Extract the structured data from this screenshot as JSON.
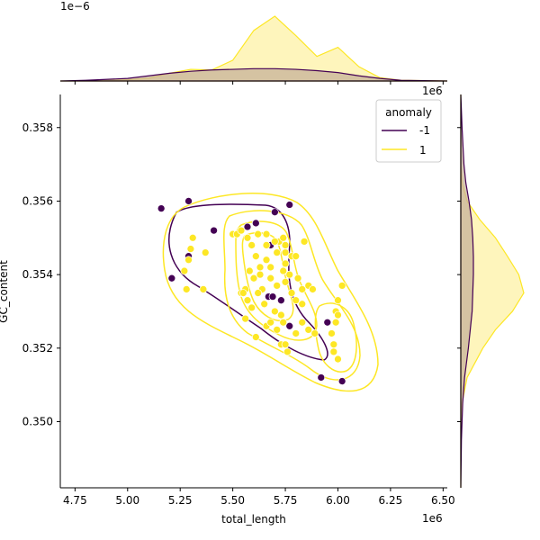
{
  "chart_data": {
    "type": "scatter",
    "subtype": "jointplot-scatter-kde",
    "xlabel": "total_length",
    "ylabel": "GC_content",
    "x_offset_label": "1e6",
    "y_offset_label": "",
    "top_marginal_offset_label": "1e−6",
    "right_marginal_offset_label": "1e6",
    "xlim": [
      4.68,
      6.52
    ],
    "ylim": [
      0.3482,
      0.3589
    ],
    "xticks": [
      "4.75",
      "5.00",
      "5.25",
      "5.50",
      "5.75",
      "6.00",
      "6.25",
      "6.50"
    ],
    "yticks": [
      "0.350",
      "0.352",
      "0.354",
      "0.356",
      "0.358"
    ],
    "grid": false,
    "legend": {
      "title": "anomaly",
      "placement": "upper right",
      "entries": [
        {
          "label": "-1",
          "color": "#440154"
        },
        {
          "label": "1",
          "color": "#fde725"
        }
      ]
    },
    "series": [
      {
        "name": "-1",
        "color": "#440154",
        "points": [
          [
            5.16,
            0.3558
          ],
          [
            5.21,
            0.3539
          ],
          [
            5.29,
            0.356
          ],
          [
            5.29,
            0.3545
          ],
          [
            5.41,
            0.3552
          ],
          [
            5.57,
            0.3553
          ],
          [
            5.61,
            0.3554
          ],
          [
            5.68,
            0.3548
          ],
          [
            5.7,
            0.3557
          ],
          [
            5.77,
            0.3559
          ],
          [
            5.67,
            0.3534
          ],
          [
            5.69,
            0.3534
          ],
          [
            5.73,
            0.3533
          ],
          [
            5.77,
            0.3526
          ],
          [
            5.95,
            0.3527
          ],
          [
            5.92,
            0.3512
          ],
          [
            6.02,
            0.3511
          ]
        ]
      },
      {
        "name": "1",
        "color": "#fde725",
        "points": [
          [
            5.27,
            0.3541
          ],
          [
            5.28,
            0.3536
          ],
          [
            5.29,
            0.3544
          ],
          [
            5.3,
            0.3547
          ],
          [
            5.31,
            0.355
          ],
          [
            5.36,
            0.3536
          ],
          [
            5.37,
            0.3546
          ],
          [
            5.5,
            0.3551
          ],
          [
            5.52,
            0.3551
          ],
          [
            5.54,
            0.3552
          ],
          [
            5.57,
            0.355
          ],
          [
            5.59,
            0.3548
          ],
          [
            5.62,
            0.3551
          ],
          [
            5.66,
            0.3551
          ],
          [
            5.61,
            0.3545
          ],
          [
            5.63,
            0.3542
          ],
          [
            5.66,
            0.3544
          ],
          [
            5.6,
            0.3539
          ],
          [
            5.64,
            0.3536
          ],
          [
            5.68,
            0.3539
          ],
          [
            5.71,
            0.3546
          ],
          [
            5.72,
            0.3549
          ],
          [
            5.75,
            0.3548
          ],
          [
            5.74,
            0.3541
          ],
          [
            5.75,
            0.3543
          ],
          [
            5.77,
            0.354
          ],
          [
            5.78,
            0.3545
          ],
          [
            5.8,
            0.3545
          ],
          [
            5.81,
            0.3539
          ],
          [
            5.83,
            0.3536
          ],
          [
            5.84,
            0.3549
          ],
          [
            5.86,
            0.3537
          ],
          [
            5.57,
            0.3533
          ],
          [
            5.59,
            0.3531
          ],
          [
            5.62,
            0.3535
          ],
          [
            5.65,
            0.3532
          ],
          [
            5.7,
            0.353
          ],
          [
            5.73,
            0.3529
          ],
          [
            5.78,
            0.3535
          ],
          [
            5.8,
            0.3533
          ],
          [
            5.56,
            0.3528
          ],
          [
            5.61,
            0.3523
          ],
          [
            5.66,
            0.3526
          ],
          [
            5.71,
            0.3525
          ],
          [
            5.76,
            0.3519
          ],
          [
            5.8,
            0.3524
          ],
          [
            5.83,
            0.3532
          ],
          [
            5.86,
            0.3525
          ],
          [
            5.89,
            0.3524
          ],
          [
            5.97,
            0.3524
          ],
          [
            5.98,
            0.3521
          ],
          [
            5.99,
            0.3527
          ],
          [
            5.99,
            0.353
          ],
          [
            6.0,
            0.3529
          ],
          [
            6.0,
            0.3533
          ],
          [
            6.02,
            0.3537
          ],
          [
            5.98,
            0.3519
          ],
          [
            6.0,
            0.3517
          ],
          [
            5.73,
            0.3521
          ],
          [
            5.75,
            0.3521
          ],
          [
            5.75,
            0.3538
          ],
          [
            5.68,
            0.3542
          ],
          [
            5.63,
            0.354
          ],
          [
            5.58,
            0.3541
          ],
          [
            5.56,
            0.3536
          ],
          [
            5.54,
            0.3535
          ],
          [
            5.55,
            0.3535
          ],
          [
            5.71,
            0.3537
          ],
          [
            5.75,
            0.3546
          ],
          [
            5.88,
            0.3536
          ],
          [
            5.74,
            0.3527
          ],
          [
            5.68,
            0.3527
          ],
          [
            5.83,
            0.3527
          ],
          [
            5.7,
            0.3549
          ],
          [
            5.74,
            0.355
          ],
          [
            5.66,
            0.3548
          ]
        ]
      }
    ],
    "marginal_x_density": {
      "x": [
        4.68,
        4.8,
        5.0,
        5.1,
        5.2,
        5.3,
        5.4,
        5.5,
        5.6,
        5.7,
        5.8,
        5.9,
        6.0,
        6.1,
        6.2,
        6.3,
        6.52
      ],
      "series": [
        {
          "name": "-1",
          "values": [
            0,
            0.01,
            0.04,
            0.08,
            0.12,
            0.15,
            0.17,
            0.18,
            0.19,
            0.19,
            0.18,
            0.16,
            0.13,
            0.08,
            0.04,
            0.01,
            0
          ]
        },
        {
          "name": "1",
          "values": [
            0,
            0,
            0.02,
            0.04,
            0.12,
            0.18,
            0.17,
            0.32,
            0.78,
            1.0,
            0.7,
            0.38,
            0.52,
            0.22,
            0.05,
            0.01,
            0
          ]
        }
      ]
    },
    "marginal_y_density": {
      "y": [
        0.3482,
        0.3495,
        0.3505,
        0.3512,
        0.352,
        0.3525,
        0.353,
        0.3535,
        0.354,
        0.3545,
        0.355,
        0.3555,
        0.356,
        0.3565,
        0.357,
        0.358,
        0.3589
      ],
      "series": [
        {
          "name": "-1",
          "values": [
            0,
            0.01,
            0.03,
            0.06,
            0.12,
            0.15,
            0.18,
            0.19,
            0.2,
            0.2,
            0.19,
            0.17,
            0.13,
            0.08,
            0.05,
            0.02,
            0
          ]
        },
        {
          "name": "1",
          "values": [
            0,
            0,
            0.02,
            0.1,
            0.35,
            0.55,
            0.82,
            1.0,
            0.92,
            0.74,
            0.55,
            0.3,
            0.1,
            0.02,
            0,
            0,
            0
          ]
        }
      ]
    }
  }
}
